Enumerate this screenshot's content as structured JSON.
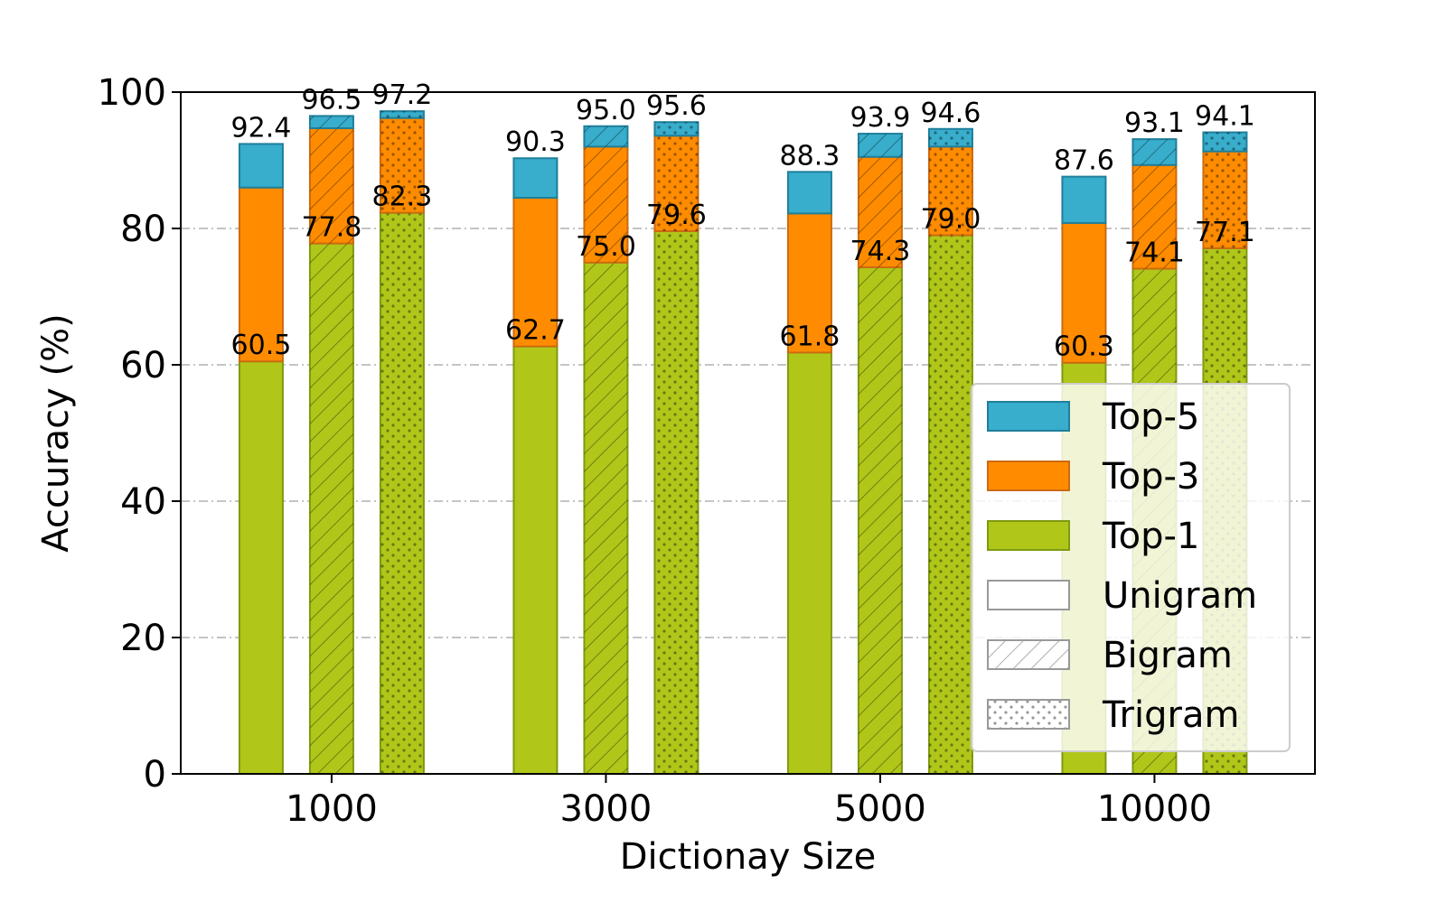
{
  "chart_data": {
    "type": "bar",
    "stacked": true,
    "categories": [
      "1000",
      "3000",
      "5000",
      "10000"
    ],
    "groups": [
      "Unigram",
      "Bigram",
      "Trigram"
    ],
    "series": [
      {
        "name": "Top-1",
        "values": {
          "Unigram": [
            60.5,
            62.7,
            61.8,
            60.3
          ],
          "Bigram": [
            77.8,
            75.0,
            74.3,
            74.1
          ],
          "Trigram": [
            82.3,
            79.6,
            79.0,
            77.1
          ]
        },
        "labels": {
          "Unigram": [
            "60.5",
            "62.7",
            "61.8",
            "60.3"
          ],
          "Bigram": [
            "77.8",
            "75.0",
            "74.3",
            "74.1"
          ],
          "Trigram": [
            "82.3",
            "79.6",
            "79.0",
            "77.1"
          ]
        }
      },
      {
        "name": "Top-3",
        "values": {
          "Unigram": [
            86.0,
            84.5,
            82.2,
            80.8
          ],
          "Bigram": [
            94.7,
            92.0,
            90.5,
            89.3
          ],
          "Trigram": [
            96.2,
            93.6,
            92.0,
            91.3
          ]
        }
      },
      {
        "name": "Top-5",
        "values": {
          "Unigram": [
            92.4,
            90.3,
            88.3,
            87.6
          ],
          "Bigram": [
            96.5,
            95.0,
            93.9,
            93.1
          ],
          "Trigram": [
            97.2,
            95.6,
            94.6,
            94.1
          ]
        },
        "labels": {
          "Unigram": [
            "92.4",
            "90.3",
            "88.3",
            "87.6"
          ],
          "Bigram": [
            "96.5",
            "95.0",
            "93.9",
            "93.1"
          ],
          "Trigram": [
            "97.2",
            "95.6",
            "94.6",
            "94.1"
          ]
        }
      }
    ],
    "xlabel": "Dictionay Size",
    "ylabel": "Accuracy (%)",
    "ylim": [
      0,
      100
    ],
    "yticks": [
      "0",
      "20",
      "40",
      "60",
      "80",
      "100"
    ],
    "grid": "horizontal dash-dot",
    "legend": {
      "placement": "lower-right",
      "entries": [
        "Top-5",
        "Top-3",
        "Top-1",
        "Unigram",
        "Bigram",
        "Trigram"
      ]
    },
    "colors": {
      "Top-1": "#b0c71a",
      "Top-1-edge": "#7f9a10",
      "Top-3": "#ff8c00",
      "Top-3-edge": "#cc6a10",
      "Top-5": "#38adcc",
      "Top-5-edge": "#1f7f9a"
    }
  }
}
